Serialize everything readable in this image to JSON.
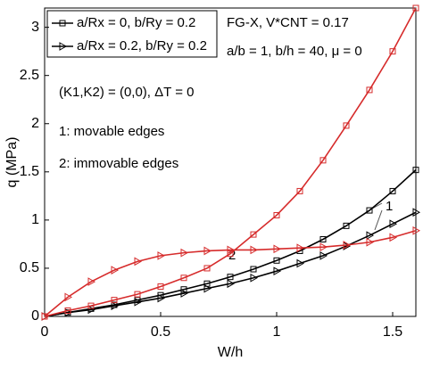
{
  "chart_data": {
    "type": "line",
    "x_label": "W/h",
    "y_label": "q (MPa)",
    "x": [
      0,
      0.1,
      0.2,
      0.3,
      0.4,
      0.5,
      0.6,
      0.7,
      0.8,
      0.9,
      1.0,
      1.1,
      1.2,
      1.3,
      1.4,
      1.5,
      1.6
    ],
    "series": [
      {
        "marker": "square",
        "color": "#000000",
        "values": [
          0,
          0.04,
          0.08,
          0.12,
          0.17,
          0.22,
          0.28,
          0.34,
          0.41,
          0.49,
          0.58,
          0.68,
          0.8,
          0.94,
          1.1,
          1.3,
          1.52
        ]
      },
      {
        "marker": "triangle",
        "color": "#000000",
        "values": [
          0,
          0.04,
          0.07,
          0.11,
          0.15,
          0.19,
          0.24,
          0.29,
          0.34,
          0.4,
          0.47,
          0.55,
          0.63,
          0.73,
          0.84,
          0.96,
          1.08
        ]
      },
      {
        "marker": "square",
        "color": "#d62b2b",
        "values": [
          0,
          0.06,
          0.11,
          0.17,
          0.23,
          0.31,
          0.4,
          0.5,
          0.65,
          0.85,
          1.05,
          1.3,
          1.62,
          1.98,
          2.35,
          2.75,
          3.2
        ]
      },
      {
        "marker": "triangle",
        "color": "#d62b2b",
        "values": [
          0,
          0.2,
          0.36,
          0.48,
          0.57,
          0.63,
          0.66,
          0.68,
          0.69,
          0.69,
          0.7,
          0.71,
          0.72,
          0.74,
          0.77,
          0.82,
          0.89
        ]
      }
    ],
    "legend": [
      {
        "name": "a/Rx = 0, b/Ry = 0.2",
        "marker": "square",
        "color": "#000000"
      },
      {
        "name": "a/Rx = 0.2, b/Ry = 0.2",
        "marker": "triangle",
        "color": "#000000"
      }
    ],
    "annotations": [
      "FG-X, V*CNT = 0.17",
      "a/b = 1, b/h = 40, μ = 0",
      "(K1,K2) = (0,0), ΔT = 0",
      "1: movable edges",
      "2: immovable edges",
      "1",
      "2"
    ],
    "xlim": [
      0,
      1.6
    ],
    "xticks": [
      0,
      0.5,
      1,
      1.5
    ],
    "ylim": [
      0,
      3.2
    ],
    "yticks": [
      0,
      0.5,
      1,
      1.5,
      2,
      2.5,
      3
    ]
  }
}
